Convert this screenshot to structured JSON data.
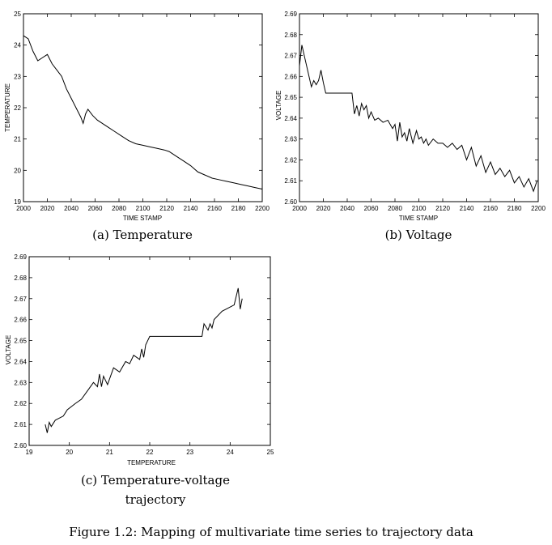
{
  "figure_caption": "Figure 1.2: Mapping of multivariate time series to trajectory data",
  "chart_data": [
    {
      "type": "line",
      "caption": "(a) Temperature",
      "xlabel": "TIME STAMP",
      "ylabel": "TEMPERATURE",
      "xlim": [
        2000,
        2200
      ],
      "ylim": [
        19,
        25
      ],
      "xticks": [
        2000,
        2020,
        2040,
        2060,
        2080,
        2100,
        2120,
        2140,
        2160,
        2180,
        2200
      ],
      "yticks": [
        19,
        20,
        21,
        22,
        23,
        24,
        25
      ],
      "x": [
        2000,
        2004,
        2008,
        2012,
        2016,
        2020,
        2024,
        2028,
        2032,
        2036,
        2040,
        2044,
        2048,
        2050,
        2052,
        2054,
        2058,
        2062,
        2066,
        2070,
        2076,
        2082,
        2088,
        2094,
        2100,
        2106,
        2112,
        2118,
        2122,
        2128,
        2134,
        2140,
        2146,
        2152,
        2158,
        2164,
        2170,
        2176,
        2182,
        2188,
        2194,
        2200
      ],
      "y": [
        24.3,
        24.2,
        23.8,
        23.5,
        23.6,
        23.7,
        23.4,
        23.2,
        23.0,
        22.6,
        22.3,
        22.0,
        21.7,
        21.5,
        21.8,
        21.95,
        21.75,
        21.6,
        21.5,
        21.4,
        21.25,
        21.1,
        20.95,
        20.85,
        20.8,
        20.75,
        20.7,
        20.65,
        20.6,
        20.45,
        20.3,
        20.15,
        19.95,
        19.85,
        19.75,
        19.7,
        19.65,
        19.6,
        19.55,
        19.5,
        19.45,
        19.4
      ]
    },
    {
      "type": "line",
      "caption": "(b) Voltage",
      "xlabel": "TIME STAMP",
      "ylabel": "VOLTAGE",
      "xlim": [
        2000,
        2200
      ],
      "ylim": [
        2.6,
        2.69
      ],
      "xticks": [
        2000,
        2020,
        2040,
        2060,
        2080,
        2100,
        2120,
        2140,
        2160,
        2180,
        2200
      ],
      "yticks": [
        2.6,
        2.61,
        2.62,
        2.63,
        2.64,
        2.65,
        2.66,
        2.67,
        2.68,
        2.69
      ],
      "x": [
        2000,
        2002,
        2004,
        2006,
        2008,
        2010,
        2012,
        2014,
        2016,
        2018,
        2020,
        2022,
        2025,
        2044,
        2046,
        2048,
        2050,
        2052,
        2054,
        2056,
        2058,
        2060,
        2063,
        2066,
        2070,
        2074,
        2078,
        2080,
        2082,
        2084,
        2086,
        2088,
        2090,
        2092,
        2095,
        2098,
        2100,
        2102,
        2104,
        2106,
        2108,
        2112,
        2116,
        2120,
        2124,
        2128,
        2132,
        2136,
        2140,
        2144,
        2148,
        2152,
        2156,
        2160,
        2164,
        2168,
        2172,
        2176,
        2180,
        2184,
        2188,
        2192,
        2196,
        2199
      ],
      "y": [
        2.665,
        2.675,
        2.67,
        2.665,
        2.66,
        2.655,
        2.658,
        2.656,
        2.658,
        2.663,
        2.657,
        2.652,
        2.652,
        2.652,
        2.642,
        2.646,
        2.641,
        2.647,
        2.644,
        2.646,
        2.64,
        2.643,
        2.639,
        2.64,
        2.638,
        2.639,
        2.635,
        2.637,
        2.629,
        2.638,
        2.631,
        2.633,
        2.629,
        2.635,
        2.628,
        2.634,
        2.63,
        2.631,
        2.628,
        2.63,
        2.627,
        2.63,
        2.628,
        2.628,
        2.626,
        2.628,
        2.625,
        2.627,
        2.62,
        2.626,
        2.617,
        2.622,
        2.614,
        2.619,
        2.613,
        2.616,
        2.612,
        2.615,
        2.609,
        2.612,
        2.607,
        2.611,
        2.605,
        2.61
      ]
    },
    {
      "type": "line",
      "caption_line1": "(c) Temperature-voltage",
      "caption_line2": "trajectory",
      "xlabel": "TEMPERATURE",
      "ylabel": "VOLTAGE",
      "xlim": [
        19,
        25
      ],
      "ylim": [
        2.6,
        2.69
      ],
      "xticks": [
        19,
        20,
        21,
        22,
        23,
        24,
        25
      ],
      "yticks": [
        2.6,
        2.61,
        2.62,
        2.63,
        2.64,
        2.65,
        2.66,
        2.67,
        2.68,
        2.69
      ],
      "x": [
        24.3,
        24.25,
        24.2,
        24.1,
        23.8,
        23.6,
        23.55,
        23.5,
        23.45,
        23.35,
        23.3,
        22.0,
        21.9,
        21.85,
        21.8,
        21.75,
        21.6,
        21.5,
        21.4,
        21.25,
        21.1,
        20.95,
        20.85,
        20.8,
        20.75,
        20.7,
        20.6,
        20.45,
        20.3,
        20.15,
        19.95,
        19.85,
        19.75,
        19.65,
        19.55,
        19.5,
        19.45,
        19.4
      ],
      "y": [
        2.67,
        2.665,
        2.675,
        2.667,
        2.664,
        2.66,
        2.656,
        2.658,
        2.655,
        2.658,
        2.652,
        2.652,
        2.648,
        2.642,
        2.646,
        2.641,
        2.643,
        2.639,
        2.64,
        2.635,
        2.637,
        2.629,
        2.633,
        2.628,
        2.634,
        2.628,
        2.63,
        2.626,
        2.622,
        2.62,
        2.617,
        2.614,
        2.613,
        2.612,
        2.609,
        2.611,
        2.606,
        2.61
      ]
    }
  ]
}
